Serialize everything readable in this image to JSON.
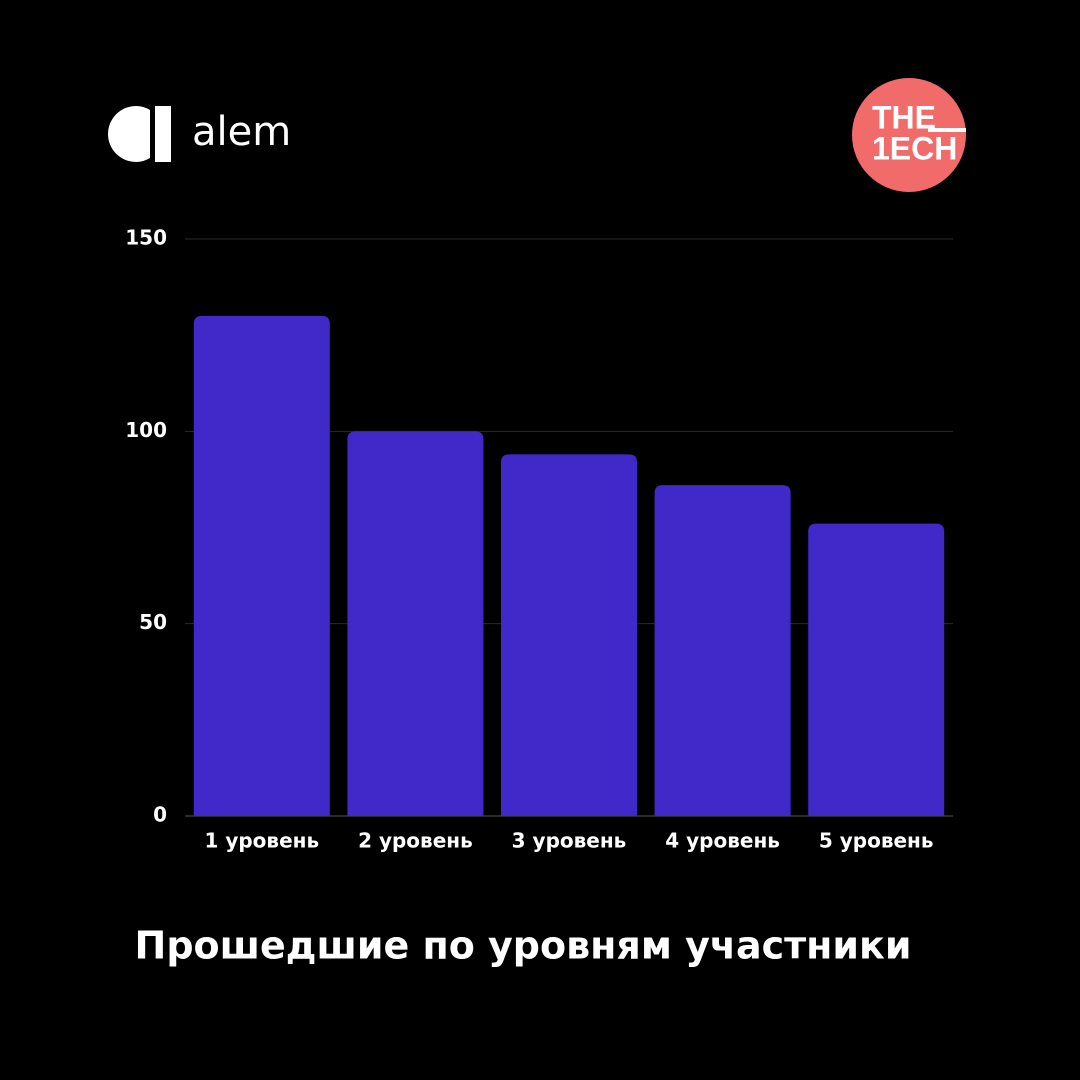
{
  "header": {
    "brand": "alem",
    "badge_lines": [
      "THE",
      "1ECH"
    ]
  },
  "chart_data": {
    "type": "bar",
    "title": "Прошедшие по уровням участники",
    "categories": [
      "1 уровень",
      "2 уровень",
      "3 уровень",
      "4 уровень",
      "5 уровень"
    ],
    "values": [
      130,
      100,
      94,
      86,
      76
    ],
    "color": "#4129c9",
    "ylim": [
      0,
      150
    ],
    "yticks": [
      0,
      50,
      100,
      150
    ],
    "grid": true
  }
}
